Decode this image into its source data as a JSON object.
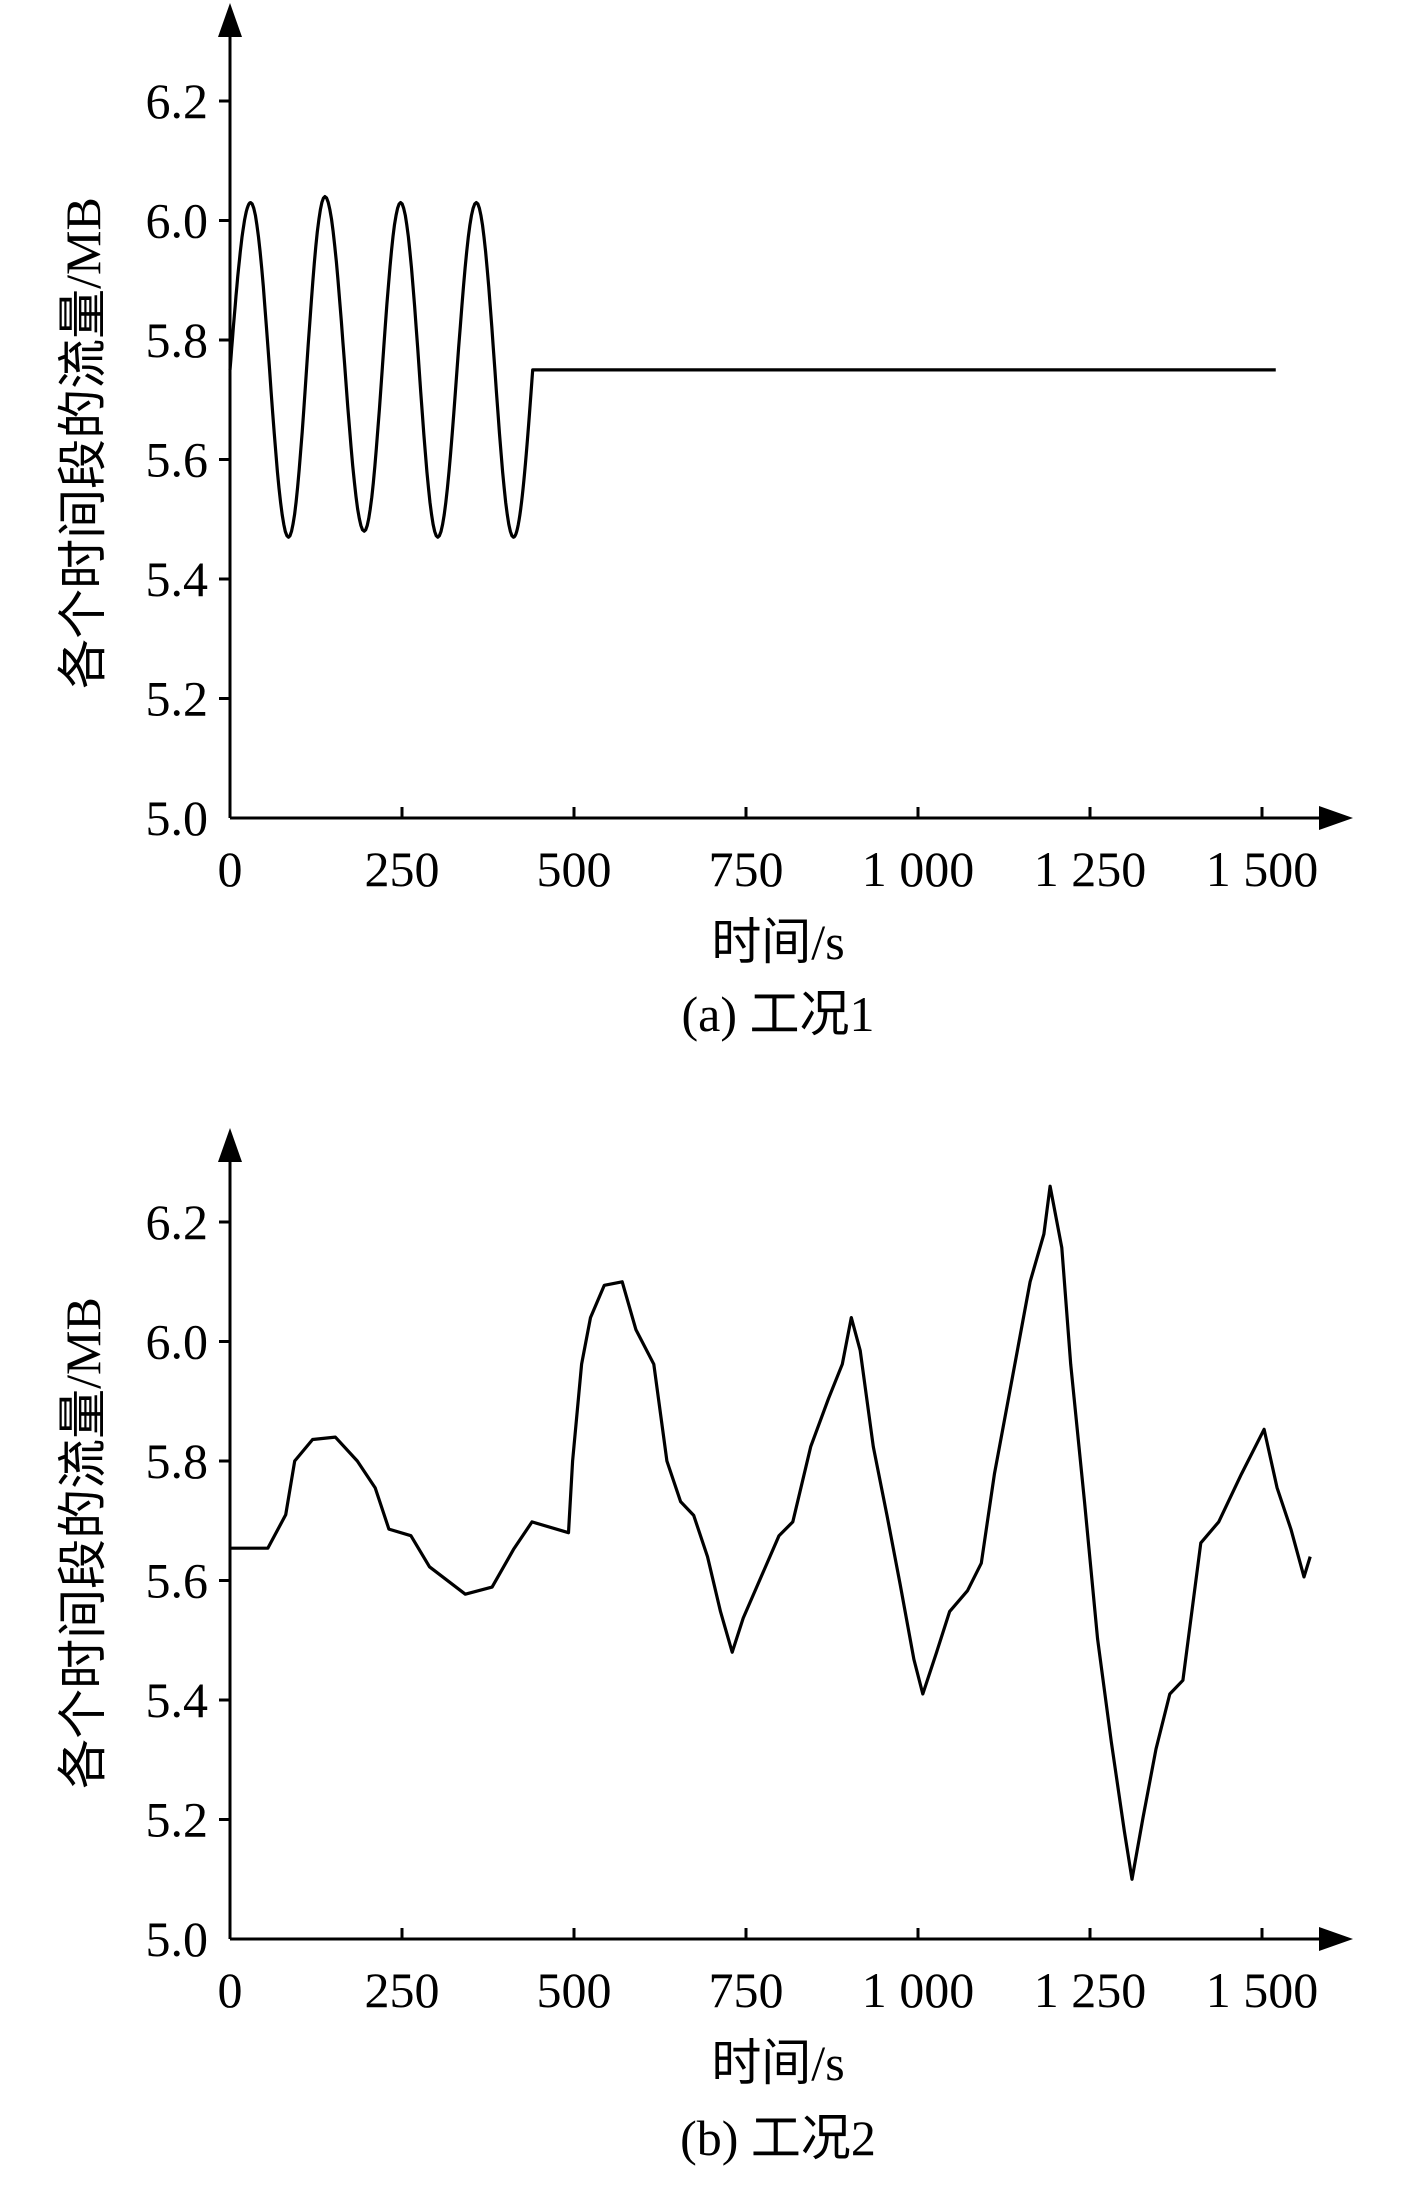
{
  "chart_data": [
    {
      "type": "line",
      "caption": "(a) 工况1",
      "xlabel": "时间/s",
      "ylabel": "各个时间段的流量/MB",
      "xlim": [
        0,
        1560
      ],
      "ylim": [
        5.0,
        6.3
      ],
      "xticks": [
        0,
        250,
        500,
        750,
        1000,
        1250,
        1500
      ],
      "xtick_labels": [
        "0",
        "250",
        "500",
        "750",
        "1 000",
        "1 250",
        "1 500"
      ],
      "yticks": [
        5.0,
        5.2,
        5.4,
        5.6,
        5.8,
        6.0,
        6.2
      ],
      "ytick_labels": [
        "5.0",
        "5.2",
        "5.4",
        "5.6",
        "5.8",
        "6.0",
        "6.2"
      ],
      "grid": false,
      "line_color": "#000000",
      "x": [
        0,
        30,
        85,
        138,
        195,
        248,
        302,
        358,
        412,
        440,
        1520
      ],
      "y": [
        5.75,
        6.03,
        5.47,
        6.04,
        5.48,
        6.03,
        5.47,
        6.03,
        5.47,
        5.75,
        5.75
      ]
    },
    {
      "type": "line",
      "caption": "(b) 工况2",
      "xlabel": "时间/s",
      "ylabel": "各个时间段的流量/MB",
      "xlim": [
        0,
        1560
      ],
      "ylim": [
        5.0,
        6.3
      ],
      "xticks": [
        0,
        250,
        500,
        750,
        1000,
        1250,
        1500
      ],
      "xtick_labels": [
        "0",
        "250",
        "500",
        "750",
        "1 000",
        "1 250",
        "1 500"
      ],
      "yticks": [
        5.0,
        5.2,
        5.4,
        5.6,
        5.8,
        6.0,
        6.2
      ],
      "ytick_labels": [
        "5.0",
        "5.2",
        "5.4",
        "5.6",
        "5.8",
        "6.0",
        "6.2"
      ],
      "grid": false,
      "line_color": "#000000",
      "x": [
        0,
        55,
        81,
        94,
        120,
        153,
        185,
        211,
        231,
        263,
        290,
        342,
        381,
        412,
        439,
        492,
        498,
        511,
        524,
        544,
        570,
        590,
        616,
        635,
        655,
        674,
        694,
        713,
        730,
        746,
        772,
        798,
        818,
        844,
        870,
        890,
        903,
        916,
        935,
        955,
        974,
        994,
        1007,
        1027,
        1046,
        1072,
        1092,
        1111,
        1137,
        1163,
        1183,
        1192,
        1209,
        1222,
        1242,
        1261,
        1281,
        1300,
        1311,
        1327,
        1346,
        1366,
        1385,
        1411,
        1437,
        1470,
        1503,
        1522,
        1542,
        1561,
        1570
      ],
      "y": [
        5.654,
        5.654,
        5.71,
        5.8,
        5.836,
        5.84,
        5.8,
        5.755,
        5.686,
        5.675,
        5.623,
        5.577,
        5.589,
        5.652,
        5.698,
        5.68,
        5.8,
        5.962,
        6.04,
        6.094,
        6.1,
        6.02,
        5.962,
        5.8,
        5.732,
        5.709,
        5.64,
        5.548,
        5.48,
        5.537,
        5.606,
        5.675,
        5.698,
        5.824,
        5.905,
        5.962,
        6.04,
        5.985,
        5.824,
        5.709,
        5.594,
        5.468,
        5.41,
        5.48,
        5.548,
        5.583,
        5.629,
        5.778,
        5.939,
        6.1,
        6.18,
        6.26,
        6.157,
        5.962,
        5.732,
        5.502,
        5.33,
        5.18,
        5.1,
        5.203,
        5.318,
        5.41,
        5.433,
        5.663,
        5.698,
        5.778,
        5.853,
        5.755,
        5.686,
        5.606,
        5.64
      ]
    }
  ]
}
